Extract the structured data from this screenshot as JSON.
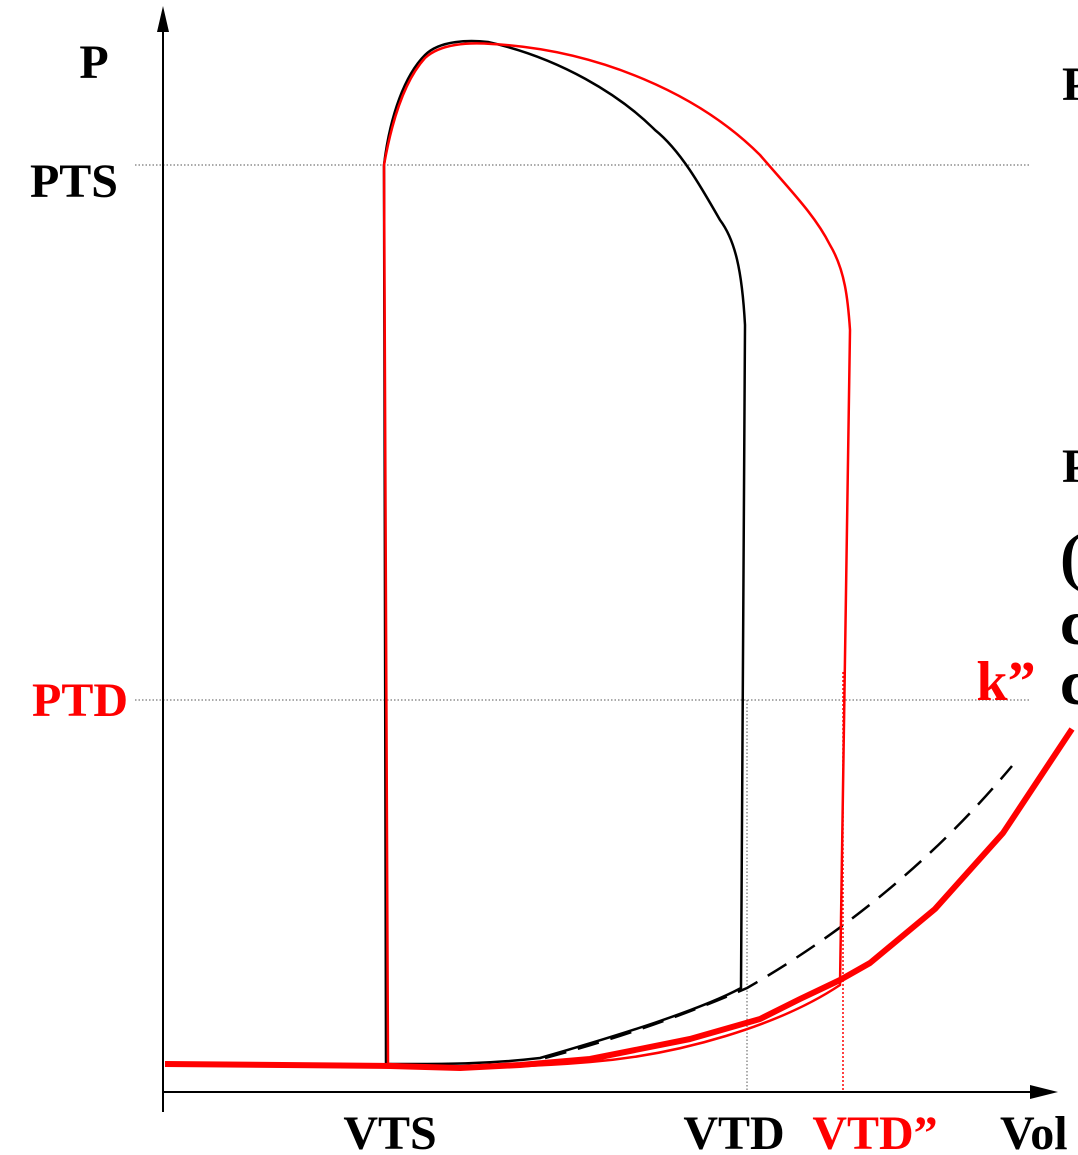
{
  "colors": {
    "black": "#000000",
    "red": "#ff0000",
    "grid": "#555555"
  },
  "labels": {
    "y_axis": "P",
    "pts": "PTS",
    "ptd": "PTD",
    "vts": "VTS",
    "vtd": "VTD",
    "vtd2": "VTD”",
    "vol": "Vol",
    "k2": "k”",
    "right_clip": [
      "P",
      "P",
      "(",
      "c",
      "c"
    ]
  },
  "curves": {
    "loop_black": "normal pressure-volume loop",
    "loop_red": "pressure-volume loop with increased end-diastolic volume",
    "edpvr_dashed": "reference filling curve",
    "edpvr_red": "filling curve k”"
  }
}
